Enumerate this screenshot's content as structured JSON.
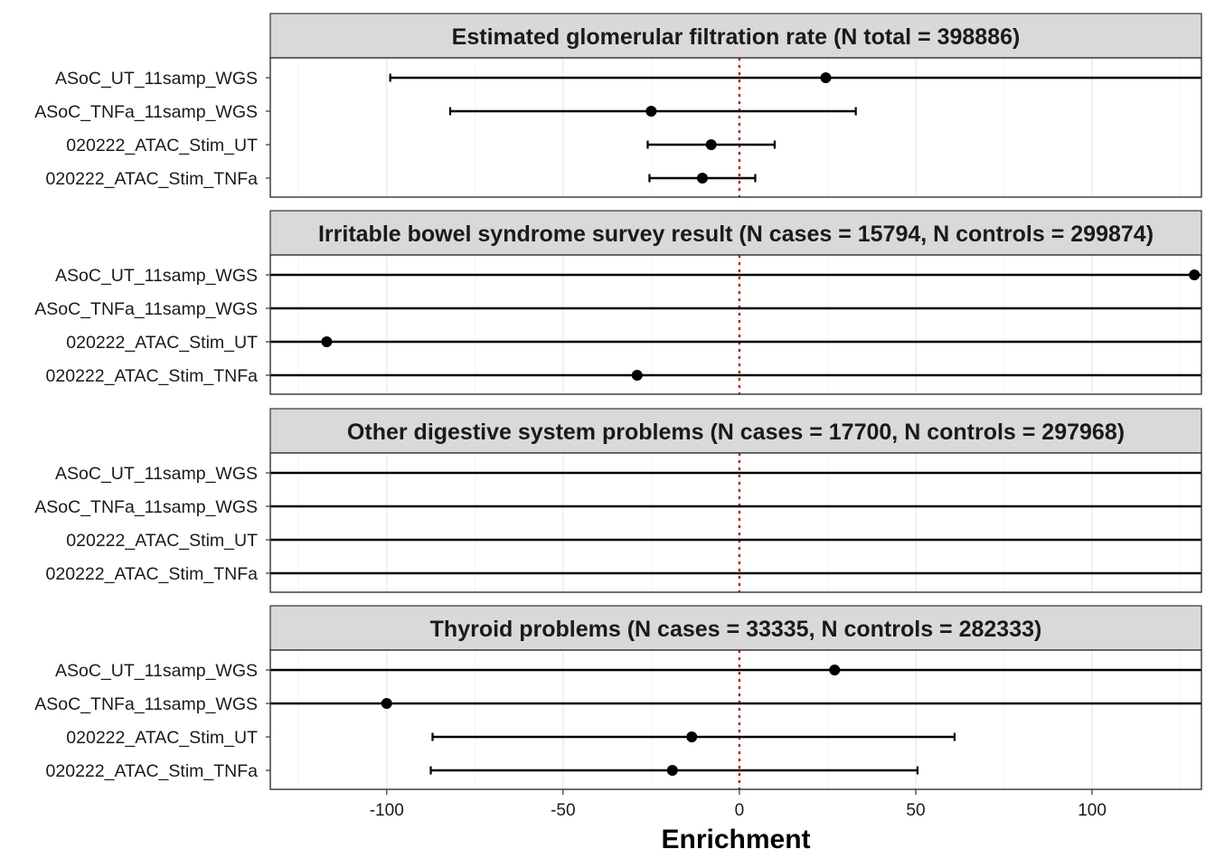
{
  "chart_data": {
    "type": "forest",
    "xlabel": "Enrichment",
    "xlim": [
      -133,
      131
    ],
    "xticks": [
      -100,
      -50,
      0,
      50,
      100
    ],
    "xtick_labels": [
      "-100",
      "-50",
      "0",
      "50",
      "100"
    ],
    "reference_line": 0,
    "grid": true,
    "colors": {
      "reference": "#ff0000",
      "strip_fill": "#d9d9d9",
      "grid": "#ebebeb",
      "point": "#000000"
    },
    "rows": [
      "ASoC_UT_11samp_WGS",
      "ASoC_TNFa_11samp_WGS",
      "020222_ATAC_Stim_UT",
      "020222_ATAC_Stim_TNFa"
    ],
    "panels": [
      {
        "title": "Estimated glomerular filtration rate (N total = 398886)",
        "points": [
          {
            "label": "ASoC_UT_11samp_WGS",
            "estimate": 24.5,
            "lower": -99,
            "upper": null
          },
          {
            "label": "ASoC_TNFa_11samp_WGS",
            "estimate": -25,
            "lower": -82,
            "upper": 33
          },
          {
            "label": "020222_ATAC_Stim_UT",
            "estimate": -8,
            "lower": -26,
            "upper": 10
          },
          {
            "label": "020222_ATAC_Stim_TNFa",
            "estimate": -10.5,
            "lower": -25.5,
            "upper": 4.5
          }
        ]
      },
      {
        "title": "Irritable bowel syndrome survey result (N cases = 15794, N controls = 299874)",
        "points": [
          {
            "label": "ASoC_UT_11samp_WGS",
            "estimate": 129,
            "lower": null,
            "upper": null
          },
          {
            "label": "ASoC_TNFa_11samp_WGS",
            "estimate": null,
            "lower": null,
            "upper": null
          },
          {
            "label": "020222_ATAC_Stim_UT",
            "estimate": -117,
            "lower": null,
            "upper": null
          },
          {
            "label": "020222_ATAC_Stim_TNFa",
            "estimate": -29,
            "lower": null,
            "upper": null
          }
        ]
      },
      {
        "title": "Other digestive system problems (N cases = 17700, N controls = 297968)",
        "points": [
          {
            "label": "ASoC_UT_11samp_WGS",
            "estimate": null,
            "lower": null,
            "upper": null
          },
          {
            "label": "ASoC_TNFa_11samp_WGS",
            "estimate": null,
            "lower": null,
            "upper": null
          },
          {
            "label": "020222_ATAC_Stim_UT",
            "estimate": null,
            "lower": null,
            "upper": null
          },
          {
            "label": "020222_ATAC_Stim_TNFa",
            "estimate": null,
            "lower": null,
            "upper": null
          }
        ]
      },
      {
        "title": "Thyroid problems (N cases = 33335, N controls = 282333)",
        "points": [
          {
            "label": "ASoC_UT_11samp_WGS",
            "estimate": 27,
            "lower": null,
            "upper": null
          },
          {
            "label": "ASoC_TNFa_11samp_WGS",
            "estimate": -100,
            "lower": null,
            "upper": null
          },
          {
            "label": "020222_ATAC_Stim_UT",
            "estimate": -13.5,
            "lower": -87,
            "upper": 61
          },
          {
            "label": "020222_ATAC_Stim_TNFa",
            "estimate": -19,
            "lower": -87.5,
            "upper": 50.5
          }
        ]
      }
    ]
  }
}
